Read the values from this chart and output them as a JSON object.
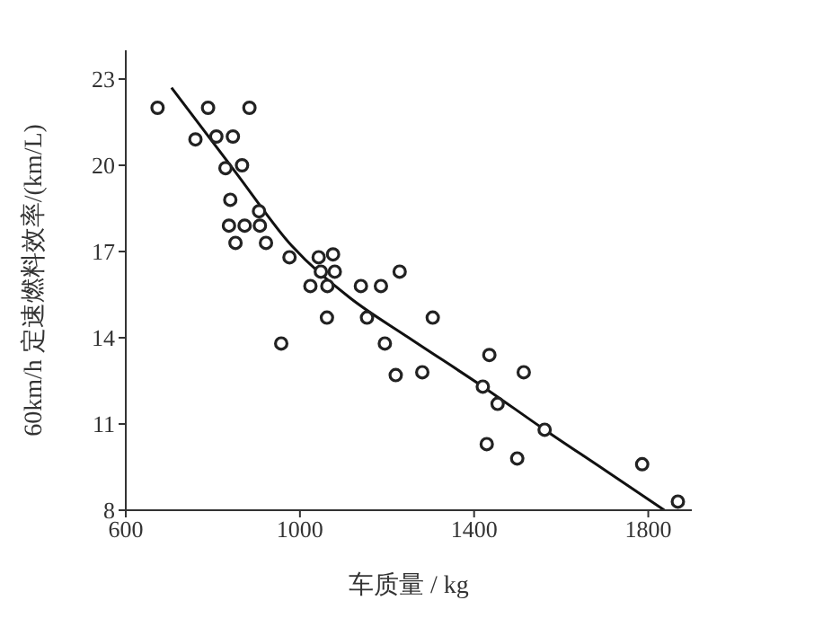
{
  "chart_data": {
    "type": "scatter",
    "xlabel": "车质量 / kg",
    "ylabel": "60km/h 定速燃料效率/(km/L)",
    "xlim": [
      600,
      1900
    ],
    "ylim": [
      8,
      24
    ],
    "xticks": [
      600,
      1000,
      1400,
      1800
    ],
    "yticks": [
      8,
      11,
      14,
      17,
      20,
      23
    ],
    "grid": false,
    "series": [
      {
        "marker": "circle",
        "color": "#222222",
        "x": [
          673,
          789,
          884,
          760,
          808,
          846,
          829,
          867,
          840,
          906,
          837,
          873,
          908,
          852,
          922,
          976,
          1043,
          1076,
          1048,
          1080,
          1229,
          1024,
          1063,
          1140,
          1186,
          1062,
          1154,
          1305,
          957,
          1195,
          1435,
          1514,
          1281,
          1220,
          1420,
          1454,
          1562,
          1429,
          1499,
          1786,
          1868
        ],
        "values": [
          22.0,
          22.0,
          22.0,
          20.9,
          21.0,
          21.0,
          19.9,
          20.0,
          18.8,
          18.4,
          17.9,
          17.9,
          17.9,
          17.3,
          17.3,
          16.8,
          16.8,
          16.9,
          16.3,
          16.3,
          16.3,
          15.8,
          15.8,
          15.8,
          15.8,
          14.7,
          14.7,
          14.7,
          13.8,
          13.8,
          13.4,
          12.8,
          12.8,
          12.7,
          12.3,
          11.7,
          10.8,
          10.3,
          9.8,
          9.6,
          8.3
        ]
      },
      {
        "type": "line",
        "color": "#111111",
        "x": [
          705,
          850,
          981,
          1114,
          1250,
          1420,
          1562,
          1700,
          1837
        ],
        "values": [
          22.7,
          19.8,
          17.2,
          15.4,
          14.0,
          12.3,
          10.8,
          9.4,
          8.0
        ]
      }
    ]
  }
}
